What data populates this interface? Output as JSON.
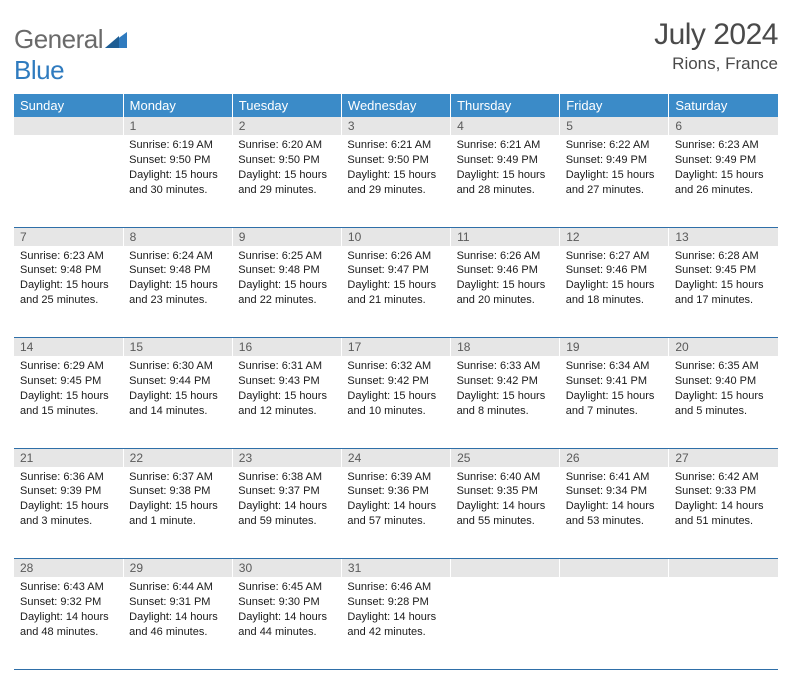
{
  "logo": {
    "text1": "General",
    "text2": "Blue"
  },
  "title": "July 2024",
  "location": "Rions, France",
  "columns": [
    "Sunday",
    "Monday",
    "Tuesday",
    "Wednesday",
    "Thursday",
    "Friday",
    "Saturday"
  ],
  "colors": {
    "header_bg": "#3b8bc8",
    "header_text": "#ffffff",
    "daynum_bg": "#e6e6e6",
    "daynum_text": "#5a5a5a",
    "row_border": "#2f6fa8",
    "body_text": "#1a1a1a",
    "logo_gray": "#6a6a6a",
    "logo_blue": "#2f7bbf"
  },
  "weeks": [
    [
      {
        "n": "",
        "lines": []
      },
      {
        "n": "1",
        "lines": [
          "Sunrise: 6:19 AM",
          "Sunset: 9:50 PM",
          "Daylight: 15 hours",
          "and 30 minutes."
        ]
      },
      {
        "n": "2",
        "lines": [
          "Sunrise: 6:20 AM",
          "Sunset: 9:50 PM",
          "Daylight: 15 hours",
          "and 29 minutes."
        ]
      },
      {
        "n": "3",
        "lines": [
          "Sunrise: 6:21 AM",
          "Sunset: 9:50 PM",
          "Daylight: 15 hours",
          "and 29 minutes."
        ]
      },
      {
        "n": "4",
        "lines": [
          "Sunrise: 6:21 AM",
          "Sunset: 9:49 PM",
          "Daylight: 15 hours",
          "and 28 minutes."
        ]
      },
      {
        "n": "5",
        "lines": [
          "Sunrise: 6:22 AM",
          "Sunset: 9:49 PM",
          "Daylight: 15 hours",
          "and 27 minutes."
        ]
      },
      {
        "n": "6",
        "lines": [
          "Sunrise: 6:23 AM",
          "Sunset: 9:49 PM",
          "Daylight: 15 hours",
          "and 26 minutes."
        ]
      }
    ],
    [
      {
        "n": "7",
        "lines": [
          "Sunrise: 6:23 AM",
          "Sunset: 9:48 PM",
          "Daylight: 15 hours",
          "and 25 minutes."
        ]
      },
      {
        "n": "8",
        "lines": [
          "Sunrise: 6:24 AM",
          "Sunset: 9:48 PM",
          "Daylight: 15 hours",
          "and 23 minutes."
        ]
      },
      {
        "n": "9",
        "lines": [
          "Sunrise: 6:25 AM",
          "Sunset: 9:48 PM",
          "Daylight: 15 hours",
          "and 22 minutes."
        ]
      },
      {
        "n": "10",
        "lines": [
          "Sunrise: 6:26 AM",
          "Sunset: 9:47 PM",
          "Daylight: 15 hours",
          "and 21 minutes."
        ]
      },
      {
        "n": "11",
        "lines": [
          "Sunrise: 6:26 AM",
          "Sunset: 9:46 PM",
          "Daylight: 15 hours",
          "and 20 minutes."
        ]
      },
      {
        "n": "12",
        "lines": [
          "Sunrise: 6:27 AM",
          "Sunset: 9:46 PM",
          "Daylight: 15 hours",
          "and 18 minutes."
        ]
      },
      {
        "n": "13",
        "lines": [
          "Sunrise: 6:28 AM",
          "Sunset: 9:45 PM",
          "Daylight: 15 hours",
          "and 17 minutes."
        ]
      }
    ],
    [
      {
        "n": "14",
        "lines": [
          "Sunrise: 6:29 AM",
          "Sunset: 9:45 PM",
          "Daylight: 15 hours",
          "and 15 minutes."
        ]
      },
      {
        "n": "15",
        "lines": [
          "Sunrise: 6:30 AM",
          "Sunset: 9:44 PM",
          "Daylight: 15 hours",
          "and 14 minutes."
        ]
      },
      {
        "n": "16",
        "lines": [
          "Sunrise: 6:31 AM",
          "Sunset: 9:43 PM",
          "Daylight: 15 hours",
          "and 12 minutes."
        ]
      },
      {
        "n": "17",
        "lines": [
          "Sunrise: 6:32 AM",
          "Sunset: 9:42 PM",
          "Daylight: 15 hours",
          "and 10 minutes."
        ]
      },
      {
        "n": "18",
        "lines": [
          "Sunrise: 6:33 AM",
          "Sunset: 9:42 PM",
          "Daylight: 15 hours",
          "and 8 minutes."
        ]
      },
      {
        "n": "19",
        "lines": [
          "Sunrise: 6:34 AM",
          "Sunset: 9:41 PM",
          "Daylight: 15 hours",
          "and 7 minutes."
        ]
      },
      {
        "n": "20",
        "lines": [
          "Sunrise: 6:35 AM",
          "Sunset: 9:40 PM",
          "Daylight: 15 hours",
          "and 5 minutes."
        ]
      }
    ],
    [
      {
        "n": "21",
        "lines": [
          "Sunrise: 6:36 AM",
          "Sunset: 9:39 PM",
          "Daylight: 15 hours",
          "and 3 minutes."
        ]
      },
      {
        "n": "22",
        "lines": [
          "Sunrise: 6:37 AM",
          "Sunset: 9:38 PM",
          "Daylight: 15 hours",
          "and 1 minute."
        ]
      },
      {
        "n": "23",
        "lines": [
          "Sunrise: 6:38 AM",
          "Sunset: 9:37 PM",
          "Daylight: 14 hours",
          "and 59 minutes."
        ]
      },
      {
        "n": "24",
        "lines": [
          "Sunrise: 6:39 AM",
          "Sunset: 9:36 PM",
          "Daylight: 14 hours",
          "and 57 minutes."
        ]
      },
      {
        "n": "25",
        "lines": [
          "Sunrise: 6:40 AM",
          "Sunset: 9:35 PM",
          "Daylight: 14 hours",
          "and 55 minutes."
        ]
      },
      {
        "n": "26",
        "lines": [
          "Sunrise: 6:41 AM",
          "Sunset: 9:34 PM",
          "Daylight: 14 hours",
          "and 53 minutes."
        ]
      },
      {
        "n": "27",
        "lines": [
          "Sunrise: 6:42 AM",
          "Sunset: 9:33 PM",
          "Daylight: 14 hours",
          "and 51 minutes."
        ]
      }
    ],
    [
      {
        "n": "28",
        "lines": [
          "Sunrise: 6:43 AM",
          "Sunset: 9:32 PM",
          "Daylight: 14 hours",
          "and 48 minutes."
        ]
      },
      {
        "n": "29",
        "lines": [
          "Sunrise: 6:44 AM",
          "Sunset: 9:31 PM",
          "Daylight: 14 hours",
          "and 46 minutes."
        ]
      },
      {
        "n": "30",
        "lines": [
          "Sunrise: 6:45 AM",
          "Sunset: 9:30 PM",
          "Daylight: 14 hours",
          "and 44 minutes."
        ]
      },
      {
        "n": "31",
        "lines": [
          "Sunrise: 6:46 AM",
          "Sunset: 9:28 PM",
          "Daylight: 14 hours",
          "and 42 minutes."
        ]
      },
      {
        "n": "",
        "lines": []
      },
      {
        "n": "",
        "lines": []
      },
      {
        "n": "",
        "lines": []
      }
    ]
  ]
}
